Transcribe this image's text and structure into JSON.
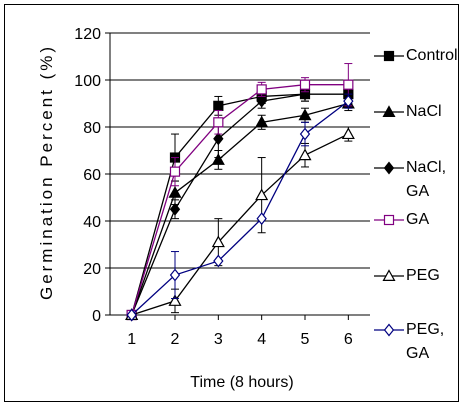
{
  "chart_data": {
    "type": "line",
    "title": "",
    "xlabel": "Time (8 hours)",
    "ylabel": "Germination Percent (%)",
    "x": [
      1,
      2,
      3,
      4,
      5,
      6
    ],
    "ylim": [
      0,
      120
    ],
    "yticks": [
      0,
      20,
      40,
      60,
      80,
      100,
      120
    ],
    "grid": true,
    "legend_position": "right",
    "series": [
      {
        "name": "Control",
        "values": [
          0,
          67,
          89,
          93,
          94,
          94
        ],
        "errors": [
          0,
          10,
          4,
          3,
          3,
          4
        ],
        "marker": "filled-square",
        "color": "#000000"
      },
      {
        "name": "NaCl",
        "values": [
          0,
          52,
          66,
          82,
          85,
          90
        ],
        "errors": [
          0,
          5,
          4,
          3,
          3,
          3
        ],
        "marker": "filled-triangle",
        "color": "#000000"
      },
      {
        "name": "NaCl,\nGA",
        "values": [
          0,
          45,
          75,
          91,
          94,
          94
        ],
        "errors": [
          0,
          4,
          8,
          3,
          3,
          3
        ],
        "marker": "filled-diamond",
        "color": "#000000"
      },
      {
        "name": "GA",
        "values": [
          0,
          61,
          82,
          96,
          98,
          98
        ],
        "errors": [
          0,
          6,
          5,
          3,
          3,
          9
        ],
        "marker": "open-square",
        "color": "#800080"
      },
      {
        "name": "PEG",
        "values": [
          0,
          6,
          31,
          51,
          68,
          77
        ],
        "errors": [
          0,
          5,
          10,
          16,
          5,
          3
        ],
        "marker": "open-triangle",
        "color": "#000000"
      },
      {
        "name": "PEG,\nGA",
        "values": [
          0,
          17,
          23,
          41,
          77,
          91
        ],
        "errors": [
          0,
          10,
          0,
          0,
          5,
          3
        ],
        "marker": "open-diamond",
        "color": "#000080"
      }
    ]
  }
}
